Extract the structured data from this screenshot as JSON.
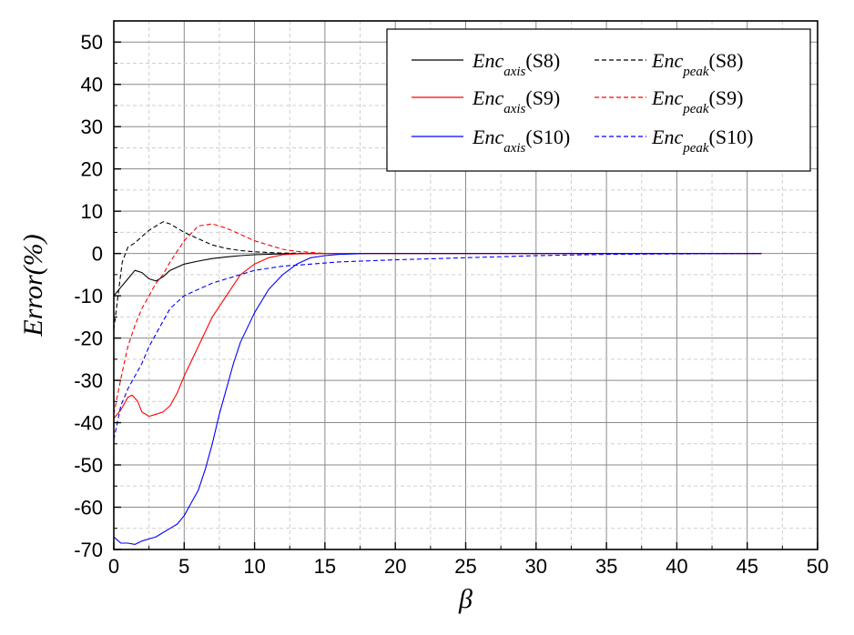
{
  "chart_data": {
    "type": "line",
    "xlabel": "β",
    "ylabel": "Error(%)",
    "xlim": [
      0,
      50
    ],
    "ylim": [
      -70,
      55
    ],
    "x_ticks": [
      "0",
      "5",
      "10",
      "15",
      "20",
      "25",
      "30",
      "35",
      "40",
      "45",
      "50"
    ],
    "y_ticks": [
      "50",
      "40",
      "30",
      "20",
      "10",
      "0",
      "-10",
      "-20",
      "-30",
      "-40",
      "-50",
      "-60",
      "-70"
    ],
    "grid": "major solid, minor dashed",
    "legend_position": "top-right",
    "series": [
      {
        "legend": {
          "base": "Enc",
          "sub": "axis",
          "tag": "(S8)"
        },
        "color": "#000000",
        "dashed": false,
        "points": [
          [
            0,
            -10
          ],
          [
            0.5,
            -8
          ],
          [
            1,
            -6
          ],
          [
            1.5,
            -4
          ],
          [
            2,
            -4.5
          ],
          [
            2.5,
            -6
          ],
          [
            3,
            -6.5
          ],
          [
            3.5,
            -5.5
          ],
          [
            4,
            -4
          ],
          [
            5,
            -2.5
          ],
          [
            6,
            -1.8
          ],
          [
            7,
            -1.2
          ],
          [
            8,
            -0.8
          ],
          [
            9,
            -0.5
          ],
          [
            10,
            -0.3
          ],
          [
            12,
            -0.1
          ],
          [
            15,
            0
          ],
          [
            20,
            0
          ],
          [
            30,
            0
          ],
          [
            40,
            0
          ],
          [
            46,
            0
          ]
        ]
      },
      {
        "legend": {
          "base": "Enc",
          "sub": "peak",
          "tag": "(S8)"
        },
        "color": "#000000",
        "dashed": true,
        "points": [
          [
            0,
            -18
          ],
          [
            0.3,
            -10
          ],
          [
            0.6,
            -2
          ],
          [
            1,
            1.5
          ],
          [
            1.5,
            2.5
          ],
          [
            2,
            4
          ],
          [
            2.5,
            5.5
          ],
          [
            3,
            6.5
          ],
          [
            3.5,
            7.5
          ],
          [
            4,
            7
          ],
          [
            5,
            5
          ],
          [
            6,
            3.5
          ],
          [
            7,
            2
          ],
          [
            8,
            1.2
          ],
          [
            9,
            0.7
          ],
          [
            10,
            0.4
          ],
          [
            12,
            0.1
          ],
          [
            15,
            0
          ],
          [
            20,
            0
          ],
          [
            30,
            0
          ],
          [
            40,
            0
          ],
          [
            46,
            0
          ]
        ]
      },
      {
        "legend": {
          "base": "Enc",
          "sub": "axis",
          "tag": "(S9)"
        },
        "color": "#ff0000",
        "dashed": false,
        "points": [
          [
            0,
            -39
          ],
          [
            0.5,
            -37
          ],
          [
            1,
            -34
          ],
          [
            1.3,
            -33.5
          ],
          [
            1.7,
            -35
          ],
          [
            2,
            -37.5
          ],
          [
            2.5,
            -38.5
          ],
          [
            3,
            -38
          ],
          [
            3.5,
            -37.5
          ],
          [
            4,
            -36
          ],
          [
            4.5,
            -33
          ],
          [
            5,
            -29
          ],
          [
            6,
            -22
          ],
          [
            7,
            -15
          ],
          [
            8,
            -10
          ],
          [
            9,
            -5
          ],
          [
            10,
            -2.5
          ],
          [
            11,
            -1
          ],
          [
            12,
            -0.3
          ],
          [
            13,
            -0.1
          ],
          [
            15,
            0
          ],
          [
            20,
            0
          ],
          [
            30,
            0
          ],
          [
            40,
            0
          ],
          [
            46,
            0
          ]
        ]
      },
      {
        "legend": {
          "base": "Enc",
          "sub": "peak",
          "tag": "(S9)"
        },
        "color": "#ff0000",
        "dashed": true,
        "points": [
          [
            0,
            -38
          ],
          [
            0.3,
            -33
          ],
          [
            0.6,
            -28
          ],
          [
            1,
            -22
          ],
          [
            1.5,
            -17
          ],
          [
            2,
            -13
          ],
          [
            2.5,
            -10
          ],
          [
            3,
            -7
          ],
          [
            3.5,
            -5
          ],
          [
            4,
            -2
          ],
          [
            5,
            3
          ],
          [
            6,
            6.5
          ],
          [
            7,
            7
          ],
          [
            8,
            6
          ],
          [
            9,
            4.5
          ],
          [
            10,
            3
          ],
          [
            11,
            2
          ],
          [
            12,
            1
          ],
          [
            13,
            0.5
          ],
          [
            15,
            0
          ],
          [
            20,
            0
          ],
          [
            30,
            0
          ],
          [
            40,
            0
          ],
          [
            46,
            0
          ]
        ]
      },
      {
        "legend": {
          "base": "Enc",
          "sub": "axis",
          "tag": "(S10)"
        },
        "color": "#0000ff",
        "dashed": false,
        "points": [
          [
            0,
            -67
          ],
          [
            0.5,
            -68.5
          ],
          [
            1,
            -68.5
          ],
          [
            1.5,
            -68.8
          ],
          [
            2,
            -68
          ],
          [
            2.5,
            -67.5
          ],
          [
            3,
            -67
          ],
          [
            3.5,
            -66
          ],
          [
            4,
            -65
          ],
          [
            4.5,
            -64
          ],
          [
            5,
            -62
          ],
          [
            5.5,
            -59
          ],
          [
            6,
            -56
          ],
          [
            6.5,
            -51
          ],
          [
            7,
            -45
          ],
          [
            7.5,
            -38
          ],
          [
            8,
            -32
          ],
          [
            8.5,
            -26
          ],
          [
            9,
            -21
          ],
          [
            10,
            -14
          ],
          [
            11,
            -8.5
          ],
          [
            12,
            -5
          ],
          [
            13,
            -2.5
          ],
          [
            14,
            -1
          ],
          [
            15,
            -0.5
          ],
          [
            16,
            -0.2
          ],
          [
            18,
            0
          ],
          [
            20,
            0
          ],
          [
            30,
            0
          ],
          [
            40,
            0
          ],
          [
            46,
            0
          ]
        ]
      },
      {
        "legend": {
          "base": "Enc",
          "sub": "peak",
          "tag": "(S10)"
        },
        "color": "#0000ff",
        "dashed": true,
        "points": [
          [
            0,
            -44
          ],
          [
            0.5,
            -36
          ],
          [
            1,
            -32
          ],
          [
            1.5,
            -29
          ],
          [
            2,
            -26
          ],
          [
            2.5,
            -22
          ],
          [
            3,
            -19
          ],
          [
            3.5,
            -16
          ],
          [
            4,
            -13
          ],
          [
            5,
            -10
          ],
          [
            6,
            -8.5
          ],
          [
            7,
            -7
          ],
          [
            8,
            -6
          ],
          [
            9,
            -5
          ],
          [
            10,
            -4
          ],
          [
            12,
            -3
          ],
          [
            14,
            -2.5
          ],
          [
            16,
            -2
          ],
          [
            20,
            -1.5
          ],
          [
            25,
            -1
          ],
          [
            30,
            -0.5
          ],
          [
            35,
            -0.2
          ],
          [
            40,
            -0.1
          ],
          [
            46,
            0
          ]
        ]
      }
    ]
  }
}
